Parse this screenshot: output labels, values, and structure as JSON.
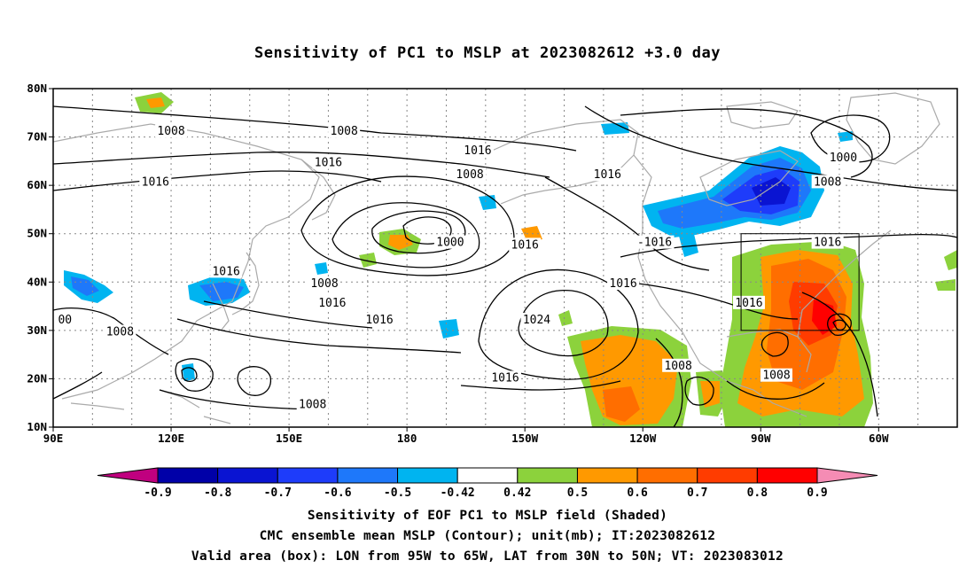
{
  "title": "Sensitivity of PC1 to MSLP at 2023082612 +3.0 day",
  "lat_labels": [
    "80N",
    "70N",
    "60N",
    "50N",
    "40N",
    "30N",
    "20N",
    "10N"
  ],
  "lon_labels": [
    "90E",
    "120E",
    "150E",
    "180",
    "150W",
    "120W",
    "90W",
    "60W"
  ],
  "contour_labels": [
    {
      "text": "1008",
      "lon": 120,
      "lat": 71
    },
    {
      "text": "1008",
      "lon": 164,
      "lat": 71
    },
    {
      "text": "1016",
      "lon": 160,
      "lat": 64.5
    },
    {
      "text": "1016",
      "lon": 116,
      "lat": 60.5
    },
    {
      "text": "1016",
      "lon": -162,
      "lat": 67
    },
    {
      "text": "1008",
      "lon": -164,
      "lat": 62
    },
    {
      "text": "1016",
      "lon": -129,
      "lat": 62
    },
    {
      "text": "1000",
      "lon": -69,
      "lat": 65.5
    },
    {
      "text": "1008",
      "lon": -73,
      "lat": 60.5
    },
    {
      "text": "1000",
      "lon": -169,
      "lat": 48
    },
    {
      "text": "1016",
      "lon": -150,
      "lat": 47.5
    },
    {
      "text": "-1016",
      "lon": -117,
      "lat": 48
    },
    {
      "text": "1016",
      "lon": -73,
      "lat": 48
    },
    {
      "text": "1016",
      "lon": 134,
      "lat": 42
    },
    {
      "text": "1008",
      "lon": 159,
      "lat": 39.5
    },
    {
      "text": "1016",
      "lon": 161,
      "lat": 35.5
    },
    {
      "text": "1016",
      "lon": -125,
      "lat": 39.5
    },
    {
      "text": "1016",
      "lon": -93,
      "lat": 35.5
    },
    {
      "text": "1016",
      "lon": 173,
      "lat": 32
    },
    {
      "text": "1024",
      "lon": -147,
      "lat": 32
    },
    {
      "text": "1008",
      "lon": 107,
      "lat": 29.5
    },
    {
      "text": "00",
      "lon": 93,
      "lat": 32
    },
    {
      "text": "1008",
      "lon": -111,
      "lat": 22.5
    },
    {
      "text": "1008",
      "lon": -86,
      "lat": 20.5
    },
    {
      "text": "1016",
      "lon": -155,
      "lat": 20
    },
    {
      "text": "1008",
      "lon": 156,
      "lat": 14.5
    }
  ],
  "valid_box": {
    "lon_min": -95,
    "lon_max": -65,
    "lat_min": 30,
    "lat_max": 50
  },
  "colorbar": {
    "colors": [
      "#c0007f",
      "#0000a8",
      "#0a14d2",
      "#1e3cfa",
      "#1e78fa",
      "#00b4f0",
      "#ffffff",
      "#8cd23c",
      "#ff9900",
      "#ff6e00",
      "#ff3c00",
      "#ff0000",
      "#f58cb4"
    ],
    "labels": [
      "-0.9",
      "-0.8",
      "-0.7",
      "-0.6",
      "-0.5",
      "-0.42",
      "0.42",
      "0.5",
      "0.6",
      "0.7",
      "0.8",
      "0.9"
    ]
  },
  "caption": {
    "line1": "Sensitivity of EOF PC1 to MSLP field (Shaded)",
    "line2": "CMC ensemble mean MSLP (Contour); unit(mb); IT:2023082612",
    "line3": "Valid area (box): LON from 95W to 65W, LAT from 30N to 50N; VT: 2023083012"
  }
}
